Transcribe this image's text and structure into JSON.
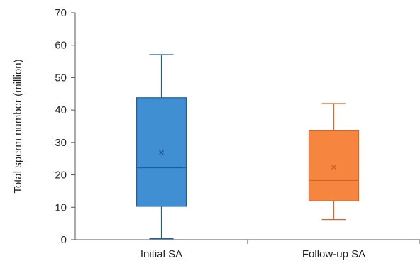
{
  "chart_data": {
    "type": "box",
    "ylabel": "Total sperm number (million)",
    "xlabel": "",
    "ylim": [
      0,
      70
    ],
    "yticks": [
      0,
      10,
      20,
      30,
      40,
      50,
      60,
      70
    ],
    "categories": [
      "Initial SA",
      "Follow-up SA"
    ],
    "boxes": [
      {
        "category": "Initial SA",
        "min": 0.3,
        "q1": 10.3,
        "median": 22.2,
        "q3": 43.8,
        "max": 57.1,
        "mean": 26.9,
        "fill": "#3F8FD2",
        "stroke": "#1F5FA0",
        "mean_color": "#1F4E9A"
      },
      {
        "category": "Follow-up SA",
        "min": 6.2,
        "q1": 12.0,
        "median": 18.3,
        "q3": 33.6,
        "max": 42.0,
        "mean": 22.4,
        "fill": "#F5853F",
        "stroke": "#D4662A",
        "mean_color": "#C0602A"
      }
    ],
    "grid": false,
    "legend": "none"
  }
}
